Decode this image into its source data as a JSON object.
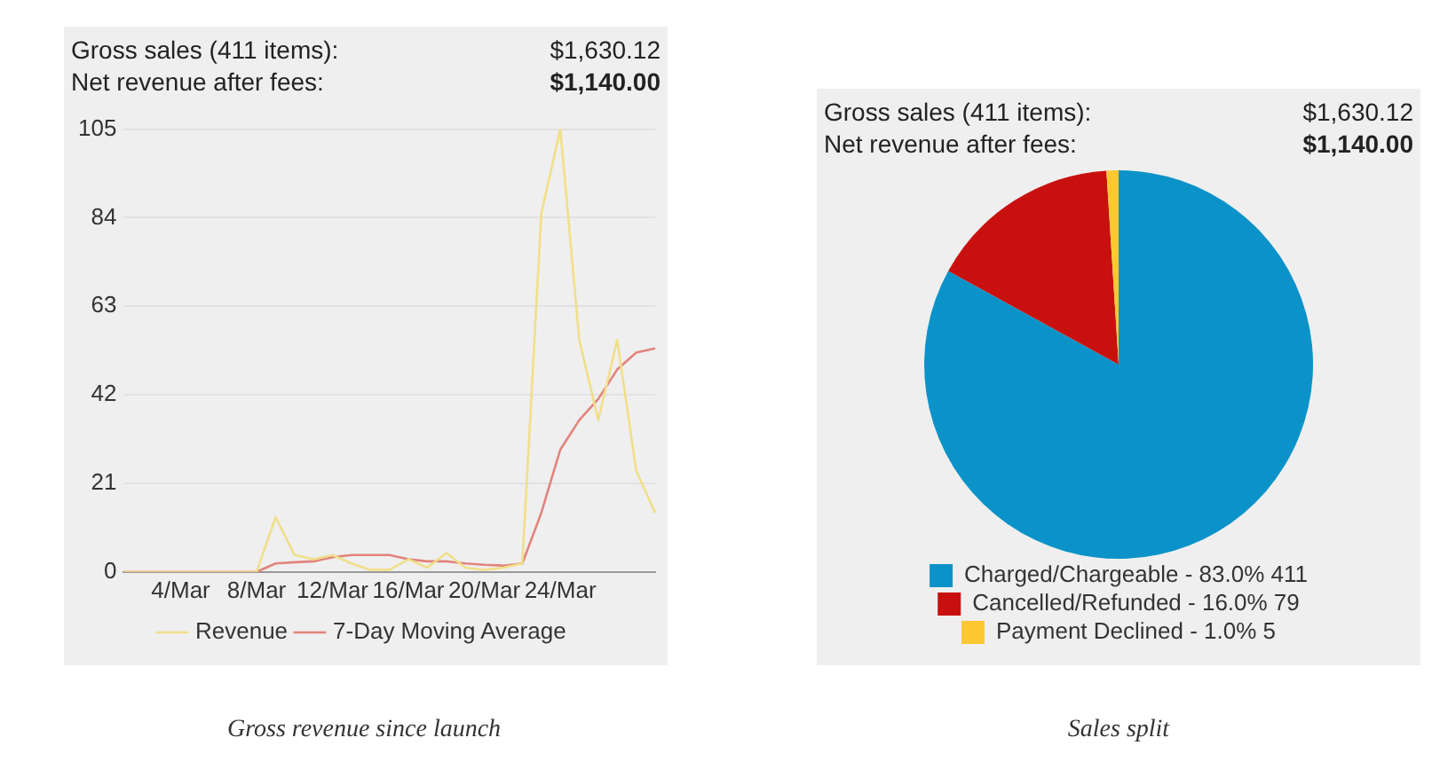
{
  "chart_data": [
    {
      "type": "line",
      "title": "Gross revenue since launch",
      "annotations": [
        "Gross sales (411 items):",
        "$1,630.12",
        "Net revenue after fees:",
        "$1,140.00"
      ],
      "categories": [
        null,
        null,
        null,
        "4/Mar",
        null,
        null,
        null,
        "8/Mar",
        null,
        null,
        null,
        "12/Mar",
        null,
        null,
        null,
        "16/Mar",
        null,
        null,
        null,
        "20/Mar",
        null,
        null,
        null,
        "24/Mar",
        null,
        null,
        null,
        null,
        null
      ],
      "series": [
        {
          "name": "Revenue",
          "color": "#f0df8a",
          "values": [
            0,
            0,
            0,
            0,
            0,
            0,
            0,
            0,
            13,
            4,
            3,
            4,
            2,
            0.5,
            0.5,
            3,
            1,
            4.5,
            1,
            0.5,
            1,
            2,
            85,
            105,
            55,
            36,
            55,
            24,
            14
          ]
        },
        {
          "name": "7-Day Moving Average",
          "color": "#e2847c",
          "values": [
            0,
            0,
            0,
            0,
            0,
            0,
            0,
            0,
            2,
            2.3,
            2.5,
            3.5,
            4,
            4,
            4,
            3,
            2.5,
            2.5,
            2,
            1.7,
            1.5,
            2,
            14,
            29,
            36,
            41,
            48,
            52,
            53
          ]
        }
      ],
      "ylim": [
        0,
        105
      ],
      "yticks": [
        0,
        21,
        42,
        63,
        84,
        105
      ],
      "grid": "y",
      "legend": "bottom",
      "marker": "none"
    },
    {
      "type": "pie",
      "title": "Sales split",
      "annotations": [
        "Gross sales (411 items):",
        "$1,630.12",
        "Net revenue after fees:",
        "$1,140.00"
      ],
      "categories": [
        "Charged/Chargeable - 83.0% 411",
        "Cancelled/Refunded - 16.0% 79",
        "Payment Declined - 1.0% 5"
      ],
      "values": [
        83,
        16,
        1
      ],
      "colors": [
        "#0b93c9",
        "#c8110f",
        "#fcc832"
      ],
      "legend": "bottom"
    }
  ]
}
